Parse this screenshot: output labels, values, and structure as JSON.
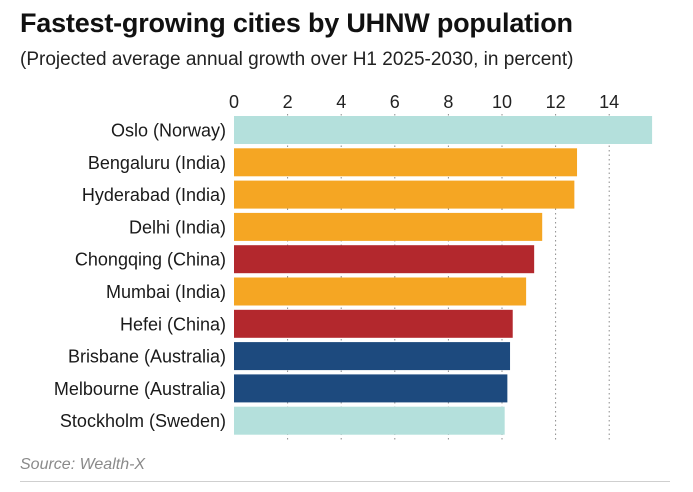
{
  "chart_data": {
    "type": "bar",
    "orientation": "horizontal",
    "title": "Fastest-growing cities by UHNW population",
    "subtitle": "(Projected average annual growth over H1 2025-2030, in percent)",
    "source": "Source: Wealth-X",
    "xlim": [
      0,
      16
    ],
    "ticks": [
      "0",
      "2",
      "4",
      "6",
      "8",
      "10",
      "12",
      "14"
    ],
    "tick_values": [
      0,
      2,
      4,
      6,
      8,
      10,
      12,
      14
    ],
    "grid": "vertical-dotted",
    "categories": [
      "Oslo (Norway)",
      "Bengaluru (India)",
      "Hyderabad (India)",
      "Delhi (India)",
      "Chongqing (China)",
      "Mumbai (India)",
      "Hefei (China)",
      "Brisbane (Australia)",
      "Melbourne (Australia)",
      "Stockholm (Sweden)"
    ],
    "values": [
      15.6,
      12.8,
      12.7,
      11.5,
      11.2,
      10.9,
      10.4,
      10.3,
      10.2,
      10.1
    ],
    "groups": [
      "Norway",
      "India",
      "India",
      "India",
      "China",
      "India",
      "China",
      "Australia",
      "Australia",
      "Sweden"
    ],
    "colors": {
      "Norway": "#b4e0dc",
      "Sweden": "#b4e0dc",
      "India": "#f5a623",
      "China": "#b3282d",
      "Australia": "#1d4a7e"
    }
  }
}
